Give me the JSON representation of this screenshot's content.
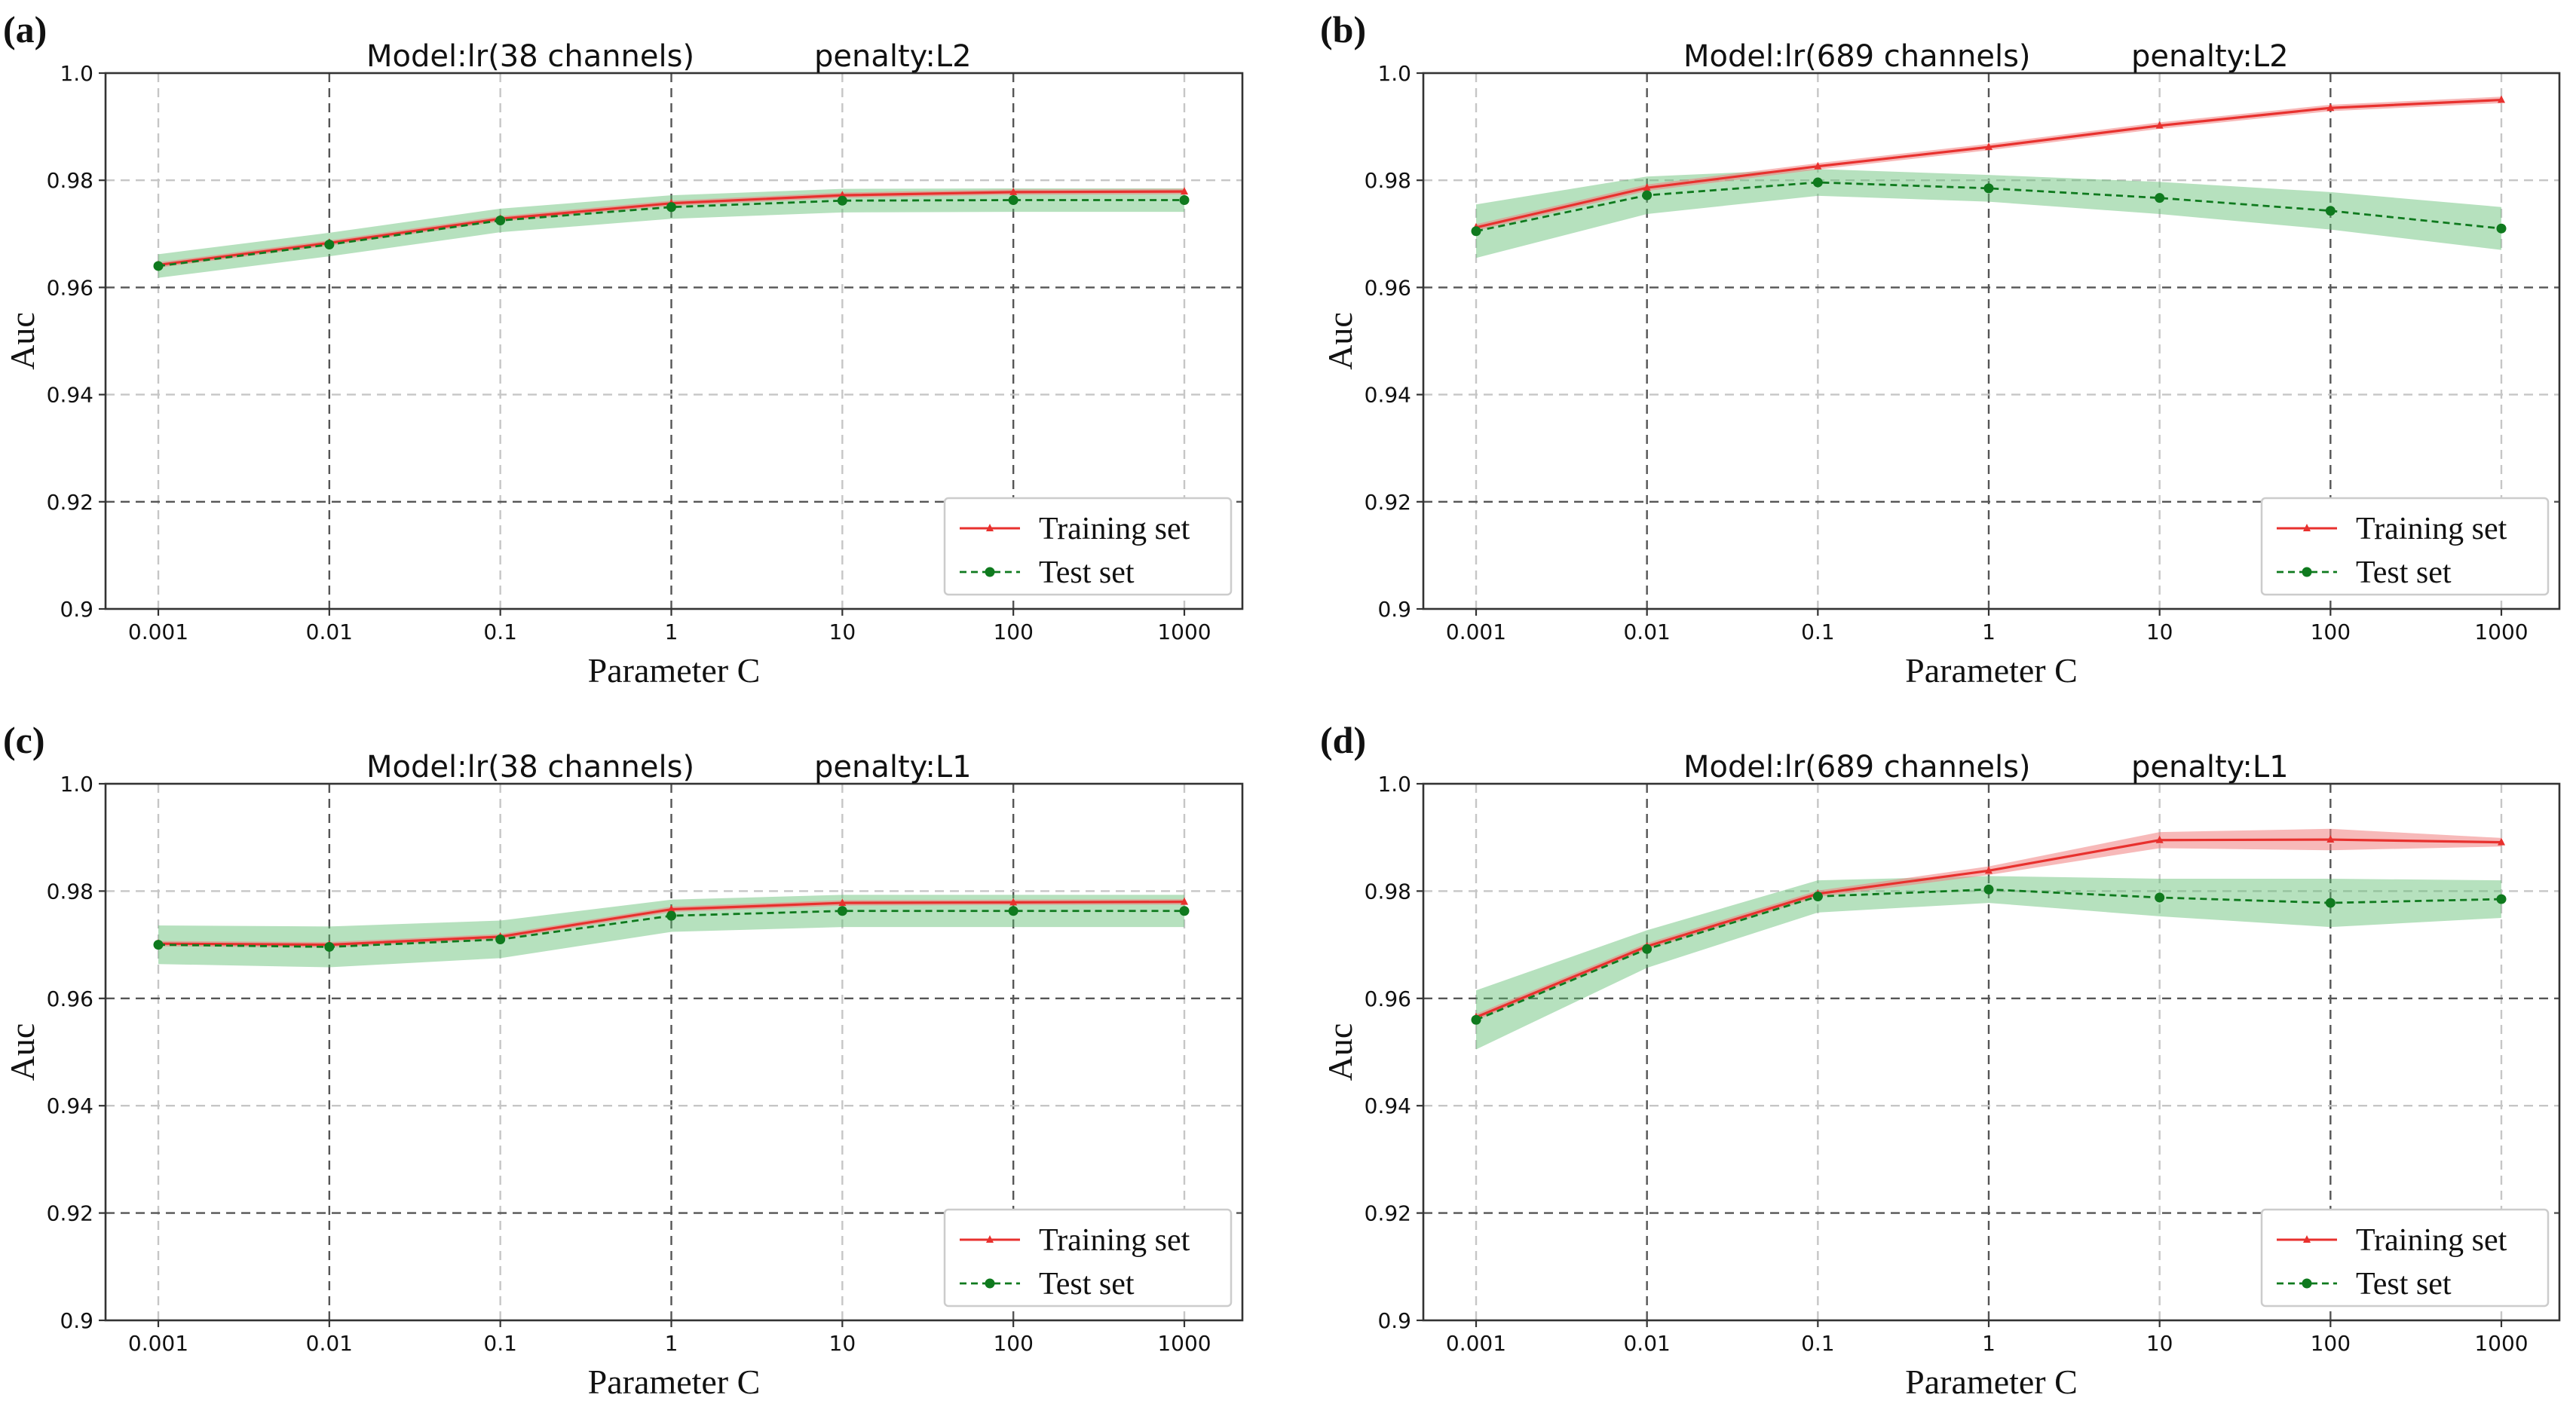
{
  "colors": {
    "train": "#e8312e",
    "train_band": "#f08080",
    "test": "#0f7a1e",
    "test_band": "#5dbd6f"
  },
  "chart_data": [
    {
      "type": "line",
      "panel_label": "(a)",
      "title_model": "Model:lr(38 channels)",
      "title_penalty": "penalty:L2",
      "xlabel": "Parameter C",
      "ylabel": "Auc",
      "categories": [
        "0.001",
        "0.01",
        "0.1",
        "1",
        "10",
        "100",
        "1000"
      ],
      "y_ticks": [
        "0.9",
        "0.92",
        "0.94",
        "0.96",
        "0.98",
        "1.0"
      ],
      "ylim": [
        0.9,
        1.0
      ],
      "legend_position": "lower-right",
      "series": [
        {
          "name": "Training set",
          "values": [
            0.9642,
            0.9683,
            0.9728,
            0.9757,
            0.9772,
            0.9778,
            0.9779
          ],
          "band": [
            0.0005,
            0.0005,
            0.0005,
            0.0005,
            0.0005,
            0.0005,
            0.0005
          ]
        },
        {
          "name": "Test set",
          "values": [
            0.964,
            0.968,
            0.9725,
            0.975,
            0.9762,
            0.9763,
            0.9763
          ],
          "band": [
            0.0022,
            0.0022,
            0.0022,
            0.0022,
            0.0022,
            0.0022,
            0.0022
          ]
        }
      ]
    },
    {
      "type": "line",
      "panel_label": "(b)",
      "title_model": "Model:lr(689 channels)",
      "title_penalty": "penalty:L2",
      "xlabel": "Parameter C",
      "ylabel": "Auc",
      "categories": [
        "0.001",
        "0.01",
        "0.1",
        "1",
        "10",
        "100",
        "1000"
      ],
      "y_ticks": [
        "0.9",
        "0.92",
        "0.94",
        "0.96",
        "0.98",
        "1.0"
      ],
      "ylim": [
        0.9,
        1.0
      ],
      "legend_position": "lower-right",
      "series": [
        {
          "name": "Training set",
          "values": [
            0.9712,
            0.9786,
            0.9826,
            0.9862,
            0.9902,
            0.9935,
            0.995
          ],
          "band": [
            0.0006,
            0.0006,
            0.0006,
            0.0006,
            0.0006,
            0.0006,
            0.0006
          ]
        },
        {
          "name": "Test set",
          "values": [
            0.9705,
            0.9772,
            0.9796,
            0.9785,
            0.9767,
            0.9743,
            0.971
          ],
          "band": [
            0.005,
            0.0035,
            0.0025,
            0.0025,
            0.003,
            0.0035,
            0.004
          ]
        }
      ]
    },
    {
      "type": "line",
      "panel_label": "(c)",
      "title_model": "Model:lr(38 channels)",
      "title_penalty": "penalty:L1",
      "xlabel": "Parameter C",
      "ylabel": "Auc",
      "categories": [
        "0.001",
        "0.01",
        "0.1",
        "1",
        "10",
        "100",
        "1000"
      ],
      "y_ticks": [
        "0.9",
        "0.92",
        "0.94",
        "0.96",
        "0.98",
        "1.0"
      ],
      "ylim": [
        0.9,
        1.0
      ],
      "legend_position": "lower-right",
      "series": [
        {
          "name": "Training set",
          "values": [
            0.9702,
            0.97,
            0.9715,
            0.9766,
            0.9778,
            0.9779,
            0.978
          ],
          "band": [
            0.0005,
            0.0005,
            0.0005,
            0.0005,
            0.0005,
            0.0005,
            0.0005
          ]
        },
        {
          "name": "Test set",
          "values": [
            0.97,
            0.9696,
            0.971,
            0.9754,
            0.9763,
            0.9763,
            0.9763
          ],
          "band": [
            0.0036,
            0.0038,
            0.0035,
            0.003,
            0.003,
            0.003,
            0.003
          ]
        }
      ]
    },
    {
      "type": "line",
      "panel_label": "(d)",
      "title_model": "Model:lr(689 channels)",
      "title_penalty": "penalty:L1",
      "xlabel": "Parameter C",
      "ylabel": "Auc",
      "categories": [
        "0.001",
        "0.01",
        "0.1",
        "1",
        "10",
        "100",
        "1000"
      ],
      "y_ticks": [
        "0.9",
        "0.92",
        "0.94",
        "0.96",
        "0.98",
        "1.0"
      ],
      "ylim": [
        0.9,
        1.0
      ],
      "legend_position": "lower-right",
      "series": [
        {
          "name": "Training set",
          "values": [
            0.9565,
            0.9697,
            0.9795,
            0.9838,
            0.9895,
            0.9896,
            0.9891
          ],
          "band": [
            0.0006,
            0.0006,
            0.0006,
            0.0008,
            0.0015,
            0.002,
            0.0008
          ]
        },
        {
          "name": "Test set",
          "values": [
            0.956,
            0.9692,
            0.979,
            0.9803,
            0.9788,
            0.9778,
            0.9785
          ],
          "band": [
            0.0055,
            0.0035,
            0.003,
            0.0025,
            0.0035,
            0.0045,
            0.0035
          ]
        }
      ]
    }
  ]
}
